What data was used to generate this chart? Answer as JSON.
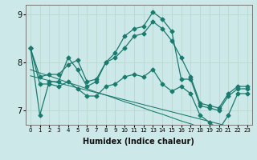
{
  "xlabel": "Humidex (Indice chaleur)",
  "bg_color": "#cce8e8",
  "line_color": "#1a7a6e",
  "x_values": [
    0,
    1,
    2,
    3,
    4,
    5,
    6,
    7,
    8,
    9,
    10,
    11,
    12,
    13,
    14,
    15,
    16,
    17,
    18,
    19,
    20,
    21,
    22,
    23
  ],
  "main_line": [
    8.3,
    6.9,
    7.6,
    7.6,
    8.1,
    7.85,
    7.5,
    7.6,
    8.0,
    8.2,
    8.55,
    8.7,
    8.75,
    9.05,
    8.9,
    8.65,
    7.65,
    7.65,
    7.1,
    7.05,
    7.0,
    7.3,
    7.45,
    7.45
  ],
  "upper_line": [
    8.3,
    7.7,
    7.75,
    7.75,
    7.95,
    8.05,
    7.6,
    7.65,
    8.0,
    8.1,
    8.3,
    8.55,
    8.6,
    8.85,
    8.7,
    8.45,
    8.1,
    7.7,
    7.15,
    7.1,
    7.05,
    7.35,
    7.5,
    7.5
  ],
  "lower_line": [
    8.3,
    7.55,
    7.55,
    7.5,
    7.6,
    7.45,
    7.3,
    7.3,
    7.5,
    7.55,
    7.7,
    7.75,
    7.7,
    7.85,
    7.55,
    7.4,
    7.5,
    7.35,
    6.9,
    6.75,
    6.6,
    6.9,
    7.35,
    7.35
  ],
  "trend_line1": [
    7.85,
    7.78,
    7.72,
    7.65,
    7.58,
    7.52,
    7.45,
    7.38,
    7.32,
    7.25,
    7.18,
    7.12,
    7.05,
    6.98,
    6.92,
    6.85,
    6.78,
    6.72,
    6.65,
    6.58,
    6.52,
    6.45,
    6.38,
    6.32
  ],
  "trend_line2": [
    7.72,
    7.67,
    7.62,
    7.57,
    7.52,
    7.47,
    7.42,
    7.37,
    7.32,
    7.27,
    7.22,
    7.17,
    7.12,
    7.07,
    7.02,
    6.97,
    6.92,
    6.87,
    6.82,
    6.77,
    6.72,
    6.67,
    6.62,
    6.57
  ],
  "ylim": [
    6.7,
    9.2
  ],
  "yticks": [
    7,
    8,
    9
  ],
  "grid_color": "#b8d8d0",
  "markersize": 2.5,
  "linewidth": 0.9
}
